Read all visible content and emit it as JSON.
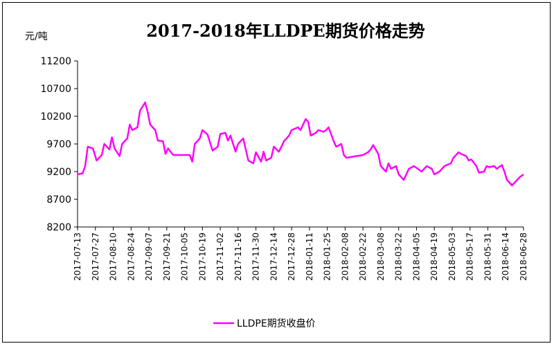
{
  "chart_data": {
    "type": "line",
    "title": "2017-2018年LLDPE期货价格走势",
    "ylabel": "元/吨",
    "ylim": [
      8200,
      11200
    ],
    "yticks": [
      8200,
      8700,
      9200,
      9700,
      10200,
      10700,
      11200
    ],
    "grid": false,
    "legend_position": "bottom",
    "xlim": [
      "2017-07-13",
      "2018-06-28"
    ],
    "xticks": [
      "2017-07-13",
      "2017-07-27",
      "2017-08-10",
      "2017-08-24",
      "2017-09-07",
      "2017-09-21",
      "2017-10-05",
      "2017-10-19",
      "2017-11-02",
      "2017-11-16",
      "2017-11-30",
      "2017-12-14",
      "2017-12-28",
      "2018-01-11",
      "2018-01-25",
      "2018-02-08",
      "2018-02-22",
      "2018-03-08",
      "2018-03-22",
      "2018-04-05",
      "2018-04-19",
      "2018-05-03",
      "2018-05-17",
      "2018-05-31",
      "2018-06-14",
      "2018-06-28"
    ],
    "series": [
      {
        "name": "LLDPE期货收盘价",
        "color": "#ff00ff",
        "points": [
          [
            "2017-07-13",
            9150
          ],
          [
            "2017-07-17",
            9170
          ],
          [
            "2017-07-19",
            9300
          ],
          [
            "2017-07-21",
            9650
          ],
          [
            "2017-07-25",
            9620
          ],
          [
            "2017-07-28",
            9400
          ],
          [
            "2017-08-01",
            9500
          ],
          [
            "2017-08-03",
            9700
          ],
          [
            "2017-08-07",
            9600
          ],
          [
            "2017-08-09",
            9820
          ],
          [
            "2017-08-11",
            9620
          ],
          [
            "2017-08-15",
            9480
          ],
          [
            "2017-08-17",
            9700
          ],
          [
            "2017-08-21",
            9800
          ],
          [
            "2017-08-23",
            10050
          ],
          [
            "2017-08-25",
            9950
          ],
          [
            "2017-08-29",
            10000
          ],
          [
            "2017-08-31",
            10300
          ],
          [
            "2017-09-04",
            10450
          ],
          [
            "2017-09-06",
            10280
          ],
          [
            "2017-09-08",
            10050
          ],
          [
            "2017-09-12",
            9950
          ],
          [
            "2017-09-14",
            9760
          ],
          [
            "2017-09-18",
            9750
          ],
          [
            "2017-09-20",
            9520
          ],
          [
            "2017-09-22",
            9620
          ],
          [
            "2017-09-26",
            9500
          ],
          [
            "2017-09-28",
            9500
          ],
          [
            "2017-10-09",
            9500
          ],
          [
            "2017-10-11",
            9380
          ],
          [
            "2017-10-13",
            9700
          ],
          [
            "2017-10-17",
            9800
          ],
          [
            "2017-10-19",
            9950
          ],
          [
            "2017-10-23",
            9870
          ],
          [
            "2017-10-25",
            9720
          ],
          [
            "2017-10-27",
            9580
          ],
          [
            "2017-10-31",
            9650
          ],
          [
            "2017-11-02",
            9880
          ],
          [
            "2017-11-06",
            9900
          ],
          [
            "2017-11-08",
            9760
          ],
          [
            "2017-11-10",
            9850
          ],
          [
            "2017-11-14",
            9560
          ],
          [
            "2017-11-16",
            9700
          ],
          [
            "2017-11-20",
            9800
          ],
          [
            "2017-11-22",
            9600
          ],
          [
            "2017-11-24",
            9400
          ],
          [
            "2017-11-28",
            9350
          ],
          [
            "2017-11-30",
            9550
          ],
          [
            "2017-12-04",
            9380
          ],
          [
            "2017-12-06",
            9560
          ],
          [
            "2017-12-08",
            9400
          ],
          [
            "2017-12-12",
            9450
          ],
          [
            "2017-12-14",
            9650
          ],
          [
            "2017-12-18",
            9560
          ],
          [
            "2017-12-20",
            9650
          ],
          [
            "2017-12-22",
            9750
          ],
          [
            "2017-12-26",
            9850
          ],
          [
            "2017-12-28",
            9950
          ],
          [
            "2018-01-02",
            10000
          ],
          [
            "2018-01-04",
            9950
          ],
          [
            "2018-01-08",
            10150
          ],
          [
            "2018-01-10",
            10100
          ],
          [
            "2018-01-12",
            9850
          ],
          [
            "2018-01-16",
            9900
          ],
          [
            "2018-01-18",
            9950
          ],
          [
            "2018-01-22",
            9920
          ],
          [
            "2018-01-24",
            9950
          ],
          [
            "2018-01-26",
            10000
          ],
          [
            "2018-01-30",
            9750
          ],
          [
            "2018-02-01",
            9650
          ],
          [
            "2018-02-05",
            9700
          ],
          [
            "2018-02-07",
            9500
          ],
          [
            "2018-02-09",
            9450
          ],
          [
            "2018-02-22",
            9500
          ],
          [
            "2018-02-26",
            9550
          ],
          [
            "2018-02-28",
            9600
          ],
          [
            "2018-03-02",
            9680
          ],
          [
            "2018-03-06",
            9520
          ],
          [
            "2018-03-08",
            9300
          ],
          [
            "2018-03-12",
            9200
          ],
          [
            "2018-03-14",
            9350
          ],
          [
            "2018-03-16",
            9250
          ],
          [
            "2018-03-20",
            9300
          ],
          [
            "2018-03-22",
            9150
          ],
          [
            "2018-03-26",
            9050
          ],
          [
            "2018-03-28",
            9150
          ],
          [
            "2018-03-30",
            9250
          ],
          [
            "2018-04-03",
            9300
          ],
          [
            "2018-04-09",
            9200
          ],
          [
            "2018-04-11",
            9250
          ],
          [
            "2018-04-13",
            9300
          ],
          [
            "2018-04-17",
            9250
          ],
          [
            "2018-04-19",
            9150
          ],
          [
            "2018-04-23",
            9200
          ],
          [
            "2018-04-25",
            9250
          ],
          [
            "2018-04-27",
            9300
          ],
          [
            "2018-05-02",
            9350
          ],
          [
            "2018-05-04",
            9450
          ],
          [
            "2018-05-08",
            9550
          ],
          [
            "2018-05-10",
            9520
          ],
          [
            "2018-05-14",
            9480
          ],
          [
            "2018-05-16",
            9400
          ],
          [
            "2018-05-18",
            9420
          ],
          [
            "2018-05-22",
            9300
          ],
          [
            "2018-05-24",
            9180
          ],
          [
            "2018-05-28",
            9200
          ],
          [
            "2018-05-30",
            9300
          ],
          [
            "2018-06-01",
            9280
          ],
          [
            "2018-06-05",
            9300
          ],
          [
            "2018-06-07",
            9250
          ],
          [
            "2018-06-11",
            9320
          ],
          [
            "2018-06-13",
            9200
          ],
          [
            "2018-06-15",
            9050
          ],
          [
            "2018-06-19",
            8950
          ],
          [
            "2018-06-21",
            9000
          ],
          [
            "2018-06-25",
            9100
          ],
          [
            "2018-06-28",
            9150
          ]
        ]
      }
    ]
  }
}
